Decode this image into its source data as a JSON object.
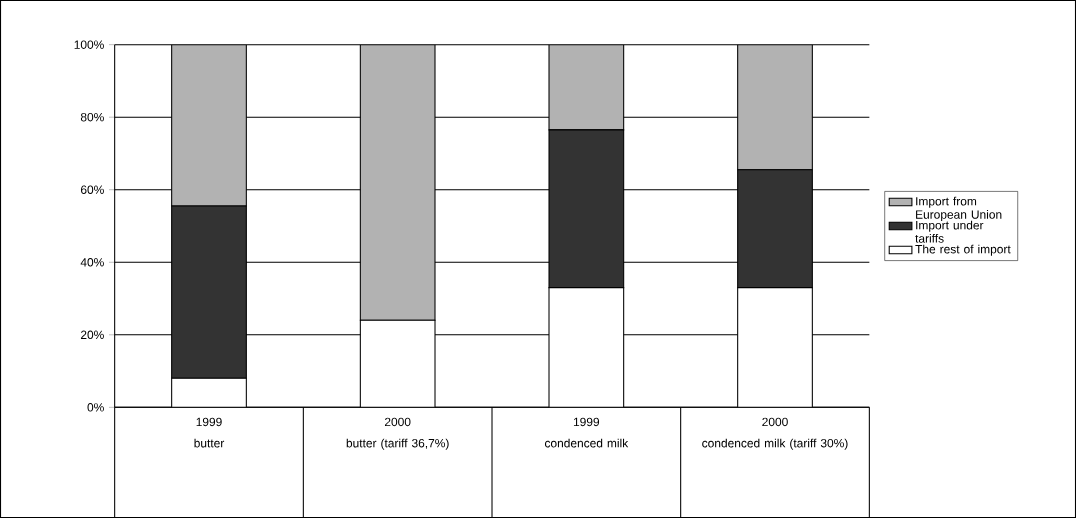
{
  "chart_data": {
    "type": "bar",
    "stacked": true,
    "categories": [
      "1999\nbutter",
      "2000\nbutter (tariff 36,7%)",
      "1999\ncondenced milk",
      "2000\ncondenced milk (tariff 30%)"
    ],
    "series": [
      {
        "name": "The rest of import",
        "color": "#ffffff",
        "values": [
          8,
          24,
          33,
          33
        ]
      },
      {
        "name": "Import under tariffs",
        "color": "#333333",
        "values": [
          47.5,
          0,
          43.5,
          32.5
        ]
      },
      {
        "name": "Import from European Union",
        "color": "#b2b2b2",
        "values": [
          44.5,
          76,
          23.5,
          34.5
        ]
      }
    ],
    "ylim": [
      0,
      100
    ],
    "yticks": [
      {
        "value": 0,
        "label": "0%"
      },
      {
        "value": 20,
        "label": "20%"
      },
      {
        "value": 40,
        "label": "40%"
      },
      {
        "value": 60,
        "label": "60%"
      },
      {
        "value": 80,
        "label": "80%"
      },
      {
        "value": 100,
        "label": "100%"
      }
    ],
    "grid": "y",
    "legend": "right"
  }
}
